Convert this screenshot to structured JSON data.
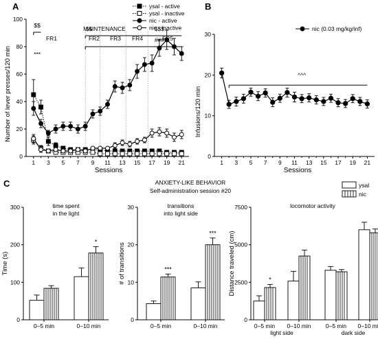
{
  "panel_letters": {
    "a": "A",
    "b": "B",
    "c": "C"
  },
  "chart_data": [
    {
      "id": "A",
      "type": "line",
      "xlabel": "Sessions",
      "ylabel": "Number of lever presses/120 min",
      "xlim": [
        0,
        22
      ],
      "ylim": [
        0,
        100
      ],
      "xticks": [
        1,
        3,
        5,
        7,
        9,
        11,
        13,
        15,
        17,
        19,
        21
      ],
      "yticks": [
        0,
        20,
        40,
        60,
        80,
        100
      ],
      "legend_placement": "top-right",
      "phase_labels": {
        "maintenance": "MAINTENANCE",
        "fr1": "FR1",
        "fr2": "FR2",
        "fr3": "FR3",
        "fr4": "FR4",
        "fr5": "FR5"
      },
      "phase_boundaries": [
        8,
        10,
        13.5,
        16.5
      ],
      "annotations": [
        {
          "text": "$$",
          "x": 1.5,
          "y": 94
        },
        {
          "text": "***",
          "x": 1.5,
          "y": 73
        },
        {
          "text": "$$",
          "x": 8.5,
          "y": 91.5
        },
        {
          "text": "$$$",
          "x": 18,
          "y": 91.5
        },
        {
          "text": "###",
          "x": 18,
          "y": 83.5
        }
      ],
      "brackets": [
        {
          "x1": 1,
          "x2": 2,
          "y": 90.5
        },
        {
          "x1": 8,
          "x2": 21,
          "y": 88
        },
        {
          "x1": 8,
          "x2": 21,
          "y": 80
        }
      ],
      "series": [
        {
          "name": "ysal - active",
          "style": "filled-square-dotted",
          "x": [
            1,
            2,
            3,
            4,
            5,
            6,
            7,
            8,
            9,
            10,
            11,
            12,
            13,
            14,
            15,
            16,
            17,
            18,
            19,
            20,
            21
          ],
          "values": [
            45,
            36,
            11,
            8,
            6,
            5,
            5,
            5,
            5,
            5,
            4,
            4,
            4,
            4,
            4,
            4,
            4,
            4,
            3,
            3,
            3
          ],
          "errors": [
            11,
            5,
            3,
            2,
            1.5,
            1,
            1,
            1,
            1,
            1,
            1,
            1,
            1,
            1,
            1,
            1,
            1,
            1,
            1,
            1,
            1
          ]
        },
        {
          "name": "ysal - inactive",
          "style": "open-square-dotted",
          "x": [
            1,
            2,
            3,
            4,
            5,
            6,
            7,
            8,
            9,
            10,
            11,
            12,
            13,
            14,
            15,
            16,
            17,
            18,
            19,
            20,
            21
          ],
          "values": [
            12,
            6,
            4,
            3,
            3,
            3,
            3,
            3,
            3,
            2,
            2,
            2,
            2,
            2,
            2,
            2,
            2,
            2,
            2,
            2,
            2
          ],
          "errors": [
            3,
            2,
            1,
            1,
            1,
            1,
            1,
            1,
            1,
            1,
            1,
            1,
            1,
            1,
            1,
            1,
            1,
            1,
            1,
            1,
            1
          ]
        },
        {
          "name": "nic - active",
          "style": "filled-circle-solid",
          "x": [
            1,
            2,
            3,
            4,
            5,
            6,
            7,
            8,
            9,
            10,
            11,
            12,
            13,
            14,
            15,
            16,
            17,
            18,
            19,
            20,
            21
          ],
          "values": [
            35,
            24,
            17,
            20,
            22,
            22,
            20,
            22,
            31,
            33,
            38,
            51,
            50,
            52,
            62,
            67,
            68,
            79,
            85,
            80,
            75
          ],
          "errors": [
            5,
            3,
            2,
            3,
            3,
            3,
            3,
            3,
            3,
            3,
            3,
            4,
            4,
            4,
            5,
            5,
            6,
            6,
            7,
            6,
            5
          ]
        },
        {
          "name": "nic - inactive",
          "style": "open-circle-solid",
          "x": [
            1,
            2,
            3,
            4,
            5,
            6,
            7,
            8,
            9,
            10,
            11,
            12,
            13,
            14,
            15,
            16,
            17,
            18,
            19,
            20,
            21
          ],
          "values": [
            13,
            5,
            4,
            5,
            4,
            4,
            5,
            4,
            6,
            6,
            6,
            8,
            10,
            9,
            11,
            12,
            17,
            18,
            17,
            14,
            16
          ],
          "errors": [
            3,
            2,
            1,
            1,
            1,
            1,
            1,
            1,
            1,
            1,
            1,
            2,
            2,
            2,
            2,
            2,
            3,
            3,
            3,
            3,
            3
          ]
        }
      ]
    },
    {
      "id": "B",
      "type": "line",
      "xlabel": "Sessions",
      "ylabel": "Infusions/120 min",
      "xlim": [
        0,
        22
      ],
      "ylim": [
        0,
        30
      ],
      "xticks": [
        1,
        3,
        5,
        7,
        9,
        11,
        13,
        15,
        17,
        19,
        21
      ],
      "yticks": [
        0,
        10,
        20,
        30
      ],
      "legend_placement": "top-right",
      "annotations": [
        {
          "text": "^^^",
          "x": 12,
          "y": 19.5
        }
      ],
      "brackets": [
        {
          "x1": 2,
          "x2": 21,
          "y": 17.5
        }
      ],
      "series": [
        {
          "name": "nic (0.03 mg/kg/inf)",
          "style": "filled-circle-solid",
          "x": [
            1,
            2,
            3,
            4,
            5,
            6,
            7,
            8,
            9,
            10,
            11,
            12,
            13,
            14,
            15,
            16,
            17,
            18,
            19,
            20,
            21
          ],
          "values": [
            20.5,
            12.8,
            13.5,
            14.2,
            15.8,
            14.8,
            15.6,
            13.3,
            14.3,
            15.7,
            14.6,
            14.2,
            14.4,
            13.9,
            13.5,
            14.3,
            13.2,
            13.0,
            14.2,
            13.5,
            12.9
          ],
          "errors": [
            1.2,
            1.0,
            1.1,
            1.1,
            1.0,
            1.1,
            1.0,
            1.1,
            1.0,
            1.1,
            1.2,
            1.0,
            1.0,
            1.0,
            1.0,
            1.0,
            1.0,
            1.0,
            1.0,
            1.0,
            1.0
          ]
        }
      ]
    },
    {
      "id": "C1",
      "type": "bar",
      "title": "time spent\nin the light",
      "ylabel": "Time (s)",
      "ylim": [
        0,
        300
      ],
      "yticks": [
        0,
        100,
        200,
        300
      ],
      "categories": [
        "0–5 min",
        "0–10 min"
      ],
      "series": [
        {
          "name": "ysal",
          "values": [
            52,
            115
          ],
          "errors": [
            14,
            23
          ]
        },
        {
          "name": "nic",
          "values": [
            84,
            178
          ],
          "errors": [
            7,
            17
          ]
        }
      ],
      "annotations": [
        {
          "text": "*",
          "category": 1,
          "series": 1
        }
      ]
    },
    {
      "id": "C2",
      "type": "bar",
      "title": "transitions\ninto light side",
      "ylabel": "# of transitions",
      "ylim": [
        0,
        30
      ],
      "yticks": [
        0,
        10,
        20,
        30
      ],
      "categories": [
        "0–5 min",
        "0–10 min"
      ],
      "series": [
        {
          "name": "ysal",
          "values": [
            4.3,
            8.5
          ],
          "errors": [
            0.7,
            1.6
          ]
        },
        {
          "name": "nic",
          "values": [
            11.4,
            20.0
          ],
          "errors": [
            0.8,
            1.8
          ]
        }
      ],
      "annotations": [
        {
          "text": "***",
          "category": 0,
          "series": 1
        },
        {
          "text": "***",
          "category": 1,
          "series": 1
        }
      ]
    },
    {
      "id": "C3",
      "type": "bar",
      "title": "locomotor activity",
      "ylabel": "Distance traveled (cm)",
      "ylim": [
        0,
        7500
      ],
      "yticks": [
        0,
        2500,
        5000,
        7500
      ],
      "categories": [
        "0–5 min",
        "0–10 min",
        "0–5 min",
        "0–10 min"
      ],
      "groups": [
        {
          "label": "light side"
        },
        {
          "label": "dark side"
        }
      ],
      "series": [
        {
          "name": "ysal",
          "values": [
            1250,
            2580,
            3300,
            6000
          ],
          "errors": [
            350,
            650,
            250,
            500
          ]
        },
        {
          "name": "nic",
          "values": [
            2150,
            4250,
            3200,
            5800
          ],
          "errors": [
            200,
            400,
            150,
            250
          ]
        }
      ],
      "annotations": [
        {
          "text": "*",
          "category": 0,
          "series": 1
        }
      ]
    }
  ],
  "section_c": {
    "title": "ANXIETY-LIKE BEHAVIOR",
    "subtitle": "Self-administration session #20",
    "legend": [
      "ysal",
      "nic"
    ]
  }
}
